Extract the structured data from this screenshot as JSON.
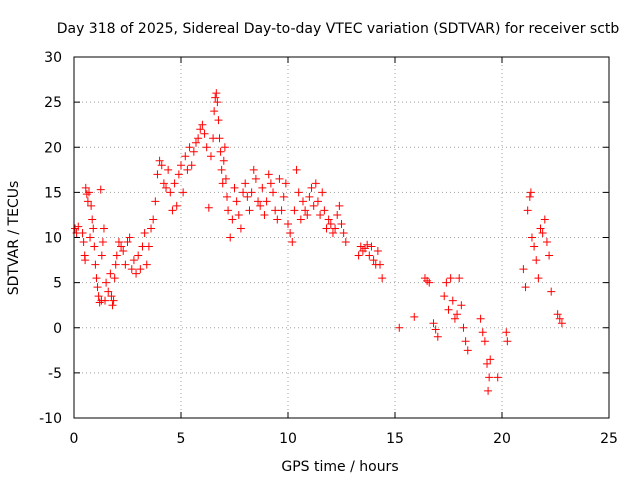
{
  "chart_data": {
    "type": "scatter",
    "title": "Day 318 of 2025, Sidereal Day-to-day VTEC variation (SDTVAR) for receiver sctb",
    "xlabel": "GPS time / hours",
    "ylabel": "SDTVAR / TECUs",
    "xlim": [
      0,
      25
    ],
    "ylim": [
      -10,
      30
    ],
    "xticks": [
      "0",
      "5",
      "10",
      "15",
      "20",
      "25"
    ],
    "yticks": [
      "-10",
      "-5",
      "0",
      "5",
      "10",
      "15",
      "20",
      "25",
      "30"
    ],
    "grid": true,
    "marker": "plus",
    "color": "#ff0000",
    "series": [
      {
        "name": "SDTVAR",
        "points": [
          [
            0.05,
            11.0
          ],
          [
            0.12,
            10.5
          ],
          [
            0.2,
            11.2
          ],
          [
            0.4,
            10.5
          ],
          [
            0.45,
            9.5
          ],
          [
            0.5,
            8.0
          ],
          [
            0.52,
            7.5
          ],
          [
            0.55,
            15.5
          ],
          [
            0.6,
            14.8
          ],
          [
            0.65,
            14.0
          ],
          [
            0.7,
            15.0
          ],
          [
            0.75,
            10.0
          ],
          [
            0.8,
            13.5
          ],
          [
            0.85,
            12.0
          ],
          [
            0.9,
            11.0
          ],
          [
            0.95,
            9.0
          ],
          [
            1.0,
            7.0
          ],
          [
            1.05,
            5.5
          ],
          [
            1.1,
            4.5
          ],
          [
            1.15,
            3.5
          ],
          [
            1.2,
            2.8
          ],
          [
            1.25,
            15.3
          ],
          [
            1.28,
            3.0
          ],
          [
            1.3,
            8.0
          ],
          [
            1.35,
            9.5
          ],
          [
            1.4,
            11.0
          ],
          [
            1.45,
            3.0
          ],
          [
            1.5,
            5.0
          ],
          [
            1.6,
            4.0
          ],
          [
            1.7,
            6.0
          ],
          [
            1.75,
            3.5
          ],
          [
            1.8,
            2.5
          ],
          [
            1.85,
            3.0
          ],
          [
            1.9,
            5.5
          ],
          [
            1.95,
            7.0
          ],
          [
            2.0,
            8.0
          ],
          [
            2.1,
            9.5
          ],
          [
            2.2,
            9.0
          ],
          [
            2.3,
            8.5
          ],
          [
            2.4,
            7.0
          ],
          [
            2.5,
            9.5
          ],
          [
            2.6,
            10.0
          ],
          [
            2.7,
            6.5
          ],
          [
            2.8,
            7.5
          ],
          [
            2.9,
            6.0
          ],
          [
            3.0,
            8.0
          ],
          [
            3.1,
            6.5
          ],
          [
            3.2,
            9.0
          ],
          [
            3.3,
            10.5
          ],
          [
            3.4,
            7.0
          ],
          [
            3.5,
            9.0
          ],
          [
            3.6,
            11.0
          ],
          [
            3.7,
            12.0
          ],
          [
            3.8,
            14.0
          ],
          [
            3.9,
            17.0
          ],
          [
            4.0,
            18.5
          ],
          [
            4.1,
            18.0
          ],
          [
            4.2,
            16.0
          ],
          [
            4.3,
            15.5
          ],
          [
            4.4,
            17.5
          ],
          [
            4.5,
            15.0
          ],
          [
            4.6,
            13.0
          ],
          [
            4.7,
            16.0
          ],
          [
            4.8,
            13.5
          ],
          [
            4.9,
            17.0
          ],
          [
            5.0,
            18.0
          ],
          [
            5.1,
            15.0
          ],
          [
            5.2,
            19.0
          ],
          [
            5.3,
            17.5
          ],
          [
            5.4,
            20.0
          ],
          [
            5.5,
            18.0
          ],
          [
            5.6,
            19.5
          ],
          [
            5.7,
            20.5
          ],
          [
            5.8,
            21.0
          ],
          [
            5.9,
            22.0
          ],
          [
            6.0,
            22.5
          ],
          [
            6.1,
            21.5
          ],
          [
            6.2,
            20.0
          ],
          [
            6.3,
            13.3
          ],
          [
            6.4,
            19.0
          ],
          [
            6.5,
            21.0
          ],
          [
            6.55,
            24.0
          ],
          [
            6.6,
            25.5
          ],
          [
            6.65,
            26.0
          ],
          [
            6.7,
            25.0
          ],
          [
            6.75,
            23.0
          ],
          [
            6.8,
            21.0
          ],
          [
            6.85,
            19.5
          ],
          [
            6.9,
            17.5
          ],
          [
            6.95,
            16.0
          ],
          [
            7.0,
            18.5
          ],
          [
            7.05,
            20.0
          ],
          [
            7.1,
            16.5
          ],
          [
            7.15,
            14.5
          ],
          [
            7.2,
            13.0
          ],
          [
            7.3,
            10.0
          ],
          [
            7.4,
            12.0
          ],
          [
            7.5,
            15.5
          ],
          [
            7.6,
            14.0
          ],
          [
            7.7,
            12.5
          ],
          [
            7.8,
            11.0
          ],
          [
            7.9,
            15.0
          ],
          [
            8.0,
            16.0
          ],
          [
            8.1,
            14.5
          ],
          [
            8.2,
            13.0
          ],
          [
            8.3,
            15.0
          ],
          [
            8.4,
            17.5
          ],
          [
            8.5,
            16.5
          ],
          [
            8.6,
            14.0
          ],
          [
            8.7,
            13.5
          ],
          [
            8.8,
            15.5
          ],
          [
            8.9,
            12.5
          ],
          [
            9.0,
            14.0
          ],
          [
            9.1,
            17.0
          ],
          [
            9.2,
            16.0
          ],
          [
            9.3,
            15.0
          ],
          [
            9.4,
            13.0
          ],
          [
            9.5,
            12.0
          ],
          [
            9.6,
            16.5
          ],
          [
            9.7,
            13.0
          ],
          [
            9.8,
            14.5
          ],
          [
            9.9,
            16.0
          ],
          [
            10.0,
            11.5
          ],
          [
            10.1,
            10.5
          ],
          [
            10.2,
            9.5
          ],
          [
            10.3,
            13.0
          ],
          [
            10.4,
            17.5
          ],
          [
            10.5,
            15.0
          ],
          [
            10.6,
            12.0
          ],
          [
            10.7,
            14.0
          ],
          [
            10.8,
            13.0
          ],
          [
            10.9,
            12.5
          ],
          [
            11.0,
            14.5
          ],
          [
            11.1,
            15.5
          ],
          [
            11.2,
            13.5
          ],
          [
            11.3,
            16.0
          ],
          [
            11.4,
            14.0
          ],
          [
            11.5,
            12.5
          ],
          [
            11.6,
            15.0
          ],
          [
            11.7,
            13.0
          ],
          [
            11.8,
            11.0
          ],
          [
            11.9,
            12.0
          ],
          [
            12.0,
            11.5
          ],
          [
            12.1,
            10.5
          ],
          [
            12.2,
            11.0
          ],
          [
            12.3,
            12.5
          ],
          [
            12.4,
            13.5
          ],
          [
            12.5,
            11.5
          ],
          [
            12.6,
            10.5
          ],
          [
            12.7,
            9.5
          ],
          [
            13.3,
            8.0
          ],
          [
            13.4,
            9.0
          ],
          [
            13.5,
            8.5
          ],
          [
            13.6,
            8.8
          ],
          [
            13.7,
            9.2
          ],
          [
            13.8,
            8.0
          ],
          [
            13.9,
            9.0
          ],
          [
            14.0,
            7.5
          ],
          [
            14.1,
            7.0
          ],
          [
            14.2,
            8.5
          ],
          [
            14.3,
            7.0
          ],
          [
            14.4,
            5.5
          ],
          [
            15.2,
            0.0
          ],
          [
            15.9,
            1.2
          ],
          [
            16.4,
            5.5
          ],
          [
            16.5,
            5.2
          ],
          [
            16.6,
            5.0
          ],
          [
            16.8,
            0.5
          ],
          [
            16.9,
            -0.2
          ],
          [
            17.0,
            -1.0
          ],
          [
            17.3,
            3.5
          ],
          [
            17.4,
            5.0
          ],
          [
            17.5,
            2.0
          ],
          [
            17.6,
            5.5
          ],
          [
            17.7,
            3.0
          ],
          [
            17.8,
            1.0
          ],
          [
            17.9,
            1.5
          ],
          [
            18.0,
            5.5
          ],
          [
            18.1,
            2.5
          ],
          [
            18.2,
            0.0
          ],
          [
            18.3,
            -1.5
          ],
          [
            18.4,
            -2.5
          ],
          [
            19.0,
            1.0
          ],
          [
            19.1,
            -0.5
          ],
          [
            19.2,
            -1.5
          ],
          [
            19.3,
            -4.0
          ],
          [
            19.35,
            -7.0
          ],
          [
            19.4,
            -5.5
          ],
          [
            19.45,
            -3.5
          ],
          [
            19.8,
            -5.5
          ],
          [
            20.2,
            -0.5
          ],
          [
            20.25,
            -1.5
          ],
          [
            21.0,
            6.5
          ],
          [
            21.1,
            4.5
          ],
          [
            21.2,
            13.0
          ],
          [
            21.3,
            14.5
          ],
          [
            21.35,
            15.0
          ],
          [
            21.4,
            10.0
          ],
          [
            21.5,
            9.0
          ],
          [
            21.6,
            7.5
          ],
          [
            21.7,
            5.5
          ],
          [
            21.8,
            11.0
          ],
          [
            21.9,
            10.5
          ],
          [
            22.0,
            12.0
          ],
          [
            22.1,
            9.5
          ],
          [
            22.2,
            8.0
          ],
          [
            22.3,
            4.0
          ],
          [
            22.6,
            1.5
          ],
          [
            22.7,
            1.0
          ],
          [
            22.8,
            0.5
          ]
        ]
      }
    ]
  }
}
